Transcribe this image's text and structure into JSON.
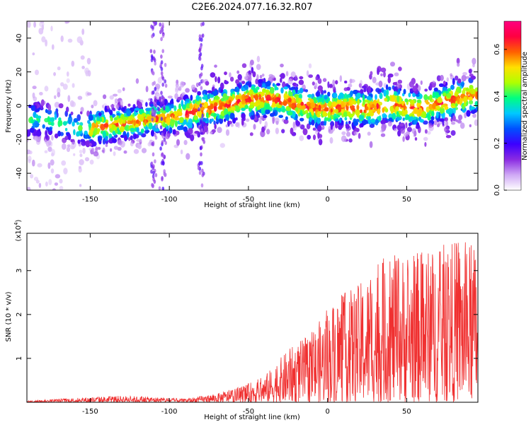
{
  "title": "C2E6.2024.077.16.32.R07",
  "chart_data": [
    {
      "type": "heatmap",
      "xlabel": "Height of straight line (km)",
      "ylabel": "Frequency (Hz)",
      "xlim": [
        -190,
        95
      ],
      "ylim": [
        -50,
        50
      ],
      "x_ticks": [
        -150,
        -100,
        -50,
        0,
        50
      ],
      "y_ticks": [
        -40,
        -20,
        0,
        20,
        40
      ],
      "colorbar": {
        "label": "Normalized spectral amplitude",
        "range": [
          0.0,
          0.72
        ],
        "ticks": [
          0.0,
          0.2,
          0.4,
          0.6
        ],
        "colormap": [
          "#ffffff",
          "#cfa8f5",
          "#8a2be2",
          "#3c00ff",
          "#0050ff",
          "#00c8ff",
          "#00ff80",
          "#b0ff00",
          "#ffe000",
          "#ff6000",
          "#ff0040",
          "#ff0080"
        ]
      },
      "centroid_track": [
        {
          "x": -185,
          "y": -8
        },
        {
          "x": -170,
          "y": -10
        },
        {
          "x": -155,
          "y": -14
        },
        {
          "x": -140,
          "y": -12
        },
        {
          "x": -125,
          "y": -10
        },
        {
          "x": -110,
          "y": -8
        },
        {
          "x": -95,
          "y": -6
        },
        {
          "x": -80,
          "y": -2
        },
        {
          "x": -65,
          "y": 0
        },
        {
          "x": -50,
          "y": 4
        },
        {
          "x": -35,
          "y": 4
        },
        {
          "x": -20,
          "y": 1
        },
        {
          "x": -5,
          "y": -2
        },
        {
          "x": 10,
          "y": -1
        },
        {
          "x": 25,
          "y": -2
        },
        {
          "x": 40,
          "y": 1
        },
        {
          "x": 55,
          "y": -2
        },
        {
          "x": 70,
          "y": 1
        },
        {
          "x": 85,
          "y": 5
        },
        {
          "x": 95,
          "y": 6
        }
      ]
    },
    {
      "type": "line",
      "xlabel": "Height of straight line (km)",
      "ylabel": "SNR (10 * v/v)",
      "y_multiplier_label": "(x10",
      "y_multiplier_exp": "4",
      "y_multiplier_close": ")",
      "xlim": [
        -190,
        95
      ],
      "ylim": [
        0,
        3.85
      ],
      "x_ticks": [
        -150,
        -100,
        -50,
        0,
        50
      ],
      "y_ticks": [
        1,
        2,
        3
      ],
      "color": "#f03030",
      "envelope": [
        {
          "x": -190,
          "y": 0.03
        },
        {
          "x": -160,
          "y": 0.1
        },
        {
          "x": -130,
          "y": 0.15
        },
        {
          "x": -110,
          "y": 0.12
        },
        {
          "x": -90,
          "y": 0.08
        },
        {
          "x": -70,
          "y": 0.2
        },
        {
          "x": -55,
          "y": 0.35
        },
        {
          "x": -40,
          "y": 0.6
        },
        {
          "x": -25,
          "y": 1.2
        },
        {
          "x": -10,
          "y": 1.6
        },
        {
          "x": 5,
          "y": 2.4
        },
        {
          "x": 20,
          "y": 2.7
        },
        {
          "x": 35,
          "y": 3.3
        },
        {
          "x": 50,
          "y": 3.4
        },
        {
          "x": 65,
          "y": 3.5
        },
        {
          "x": 80,
          "y": 3.7
        },
        {
          "x": 95,
          "y": 3.6
        }
      ]
    }
  ]
}
